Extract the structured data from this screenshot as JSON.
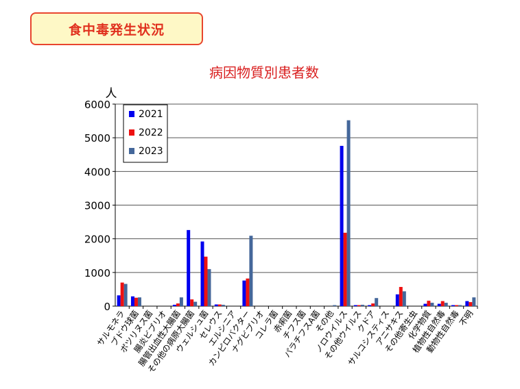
{
  "header": {
    "badge_label": "食中毒発生状況"
  },
  "chart_data": {
    "type": "bar",
    "title": "病因物質別患者数",
    "ylabel": "人",
    "ylim": [
      0,
      6000
    ],
    "yticks": [
      0,
      1000,
      2000,
      3000,
      4000,
      5000,
      6000
    ],
    "grid": true,
    "legend_position": "top-left",
    "categories": [
      "サルモネラ",
      "ブドウ球菌",
      "ボツリヌス菌",
      "腸炎ビブリオ",
      "腸管出血性大腸菌",
      "その他の病原大腸菌",
      "ウェルシュ菌",
      "セレウス",
      "エルシニア",
      "カンピロバクター",
      "ナグビブリオ",
      "コレラ菌",
      "赤痢菌",
      "チフス菌",
      "パラチフスA菌",
      "その他",
      "ノロウイルス",
      "その他ウイルス",
      "クドア",
      "サルコシスティス",
      "アニサキス",
      "その他寄生虫",
      "化学物質",
      "植物性自然毒",
      "動物性自然毒",
      "不明"
    ],
    "series": [
      {
        "name": "2021",
        "color": "#0000ee",
        "values": [
          320,
          290,
          0,
          0,
          40,
          2260,
          1920,
          50,
          0,
          760,
          0,
          0,
          0,
          0,
          0,
          0,
          4760,
          30,
          30,
          0,
          350,
          0,
          70,
          70,
          30,
          150
        ]
      },
      {
        "name": "2022",
        "color": "#ee1111",
        "values": [
          700,
          250,
          0,
          0,
          80,
          200,
          1470,
          50,
          0,
          820,
          0,
          0,
          0,
          0,
          0,
          0,
          2180,
          30,
          80,
          0,
          570,
          0,
          160,
          150,
          30,
          120
        ]
      },
      {
        "name": "2023",
        "color": "#44679a",
        "values": [
          660,
          260,
          0,
          0,
          260,
          130,
          1100,
          40,
          0,
          2090,
          0,
          0,
          0,
          0,
          0,
          30,
          5520,
          40,
          240,
          0,
          440,
          0,
          100,
          100,
          30,
          260
        ]
      }
    ]
  }
}
